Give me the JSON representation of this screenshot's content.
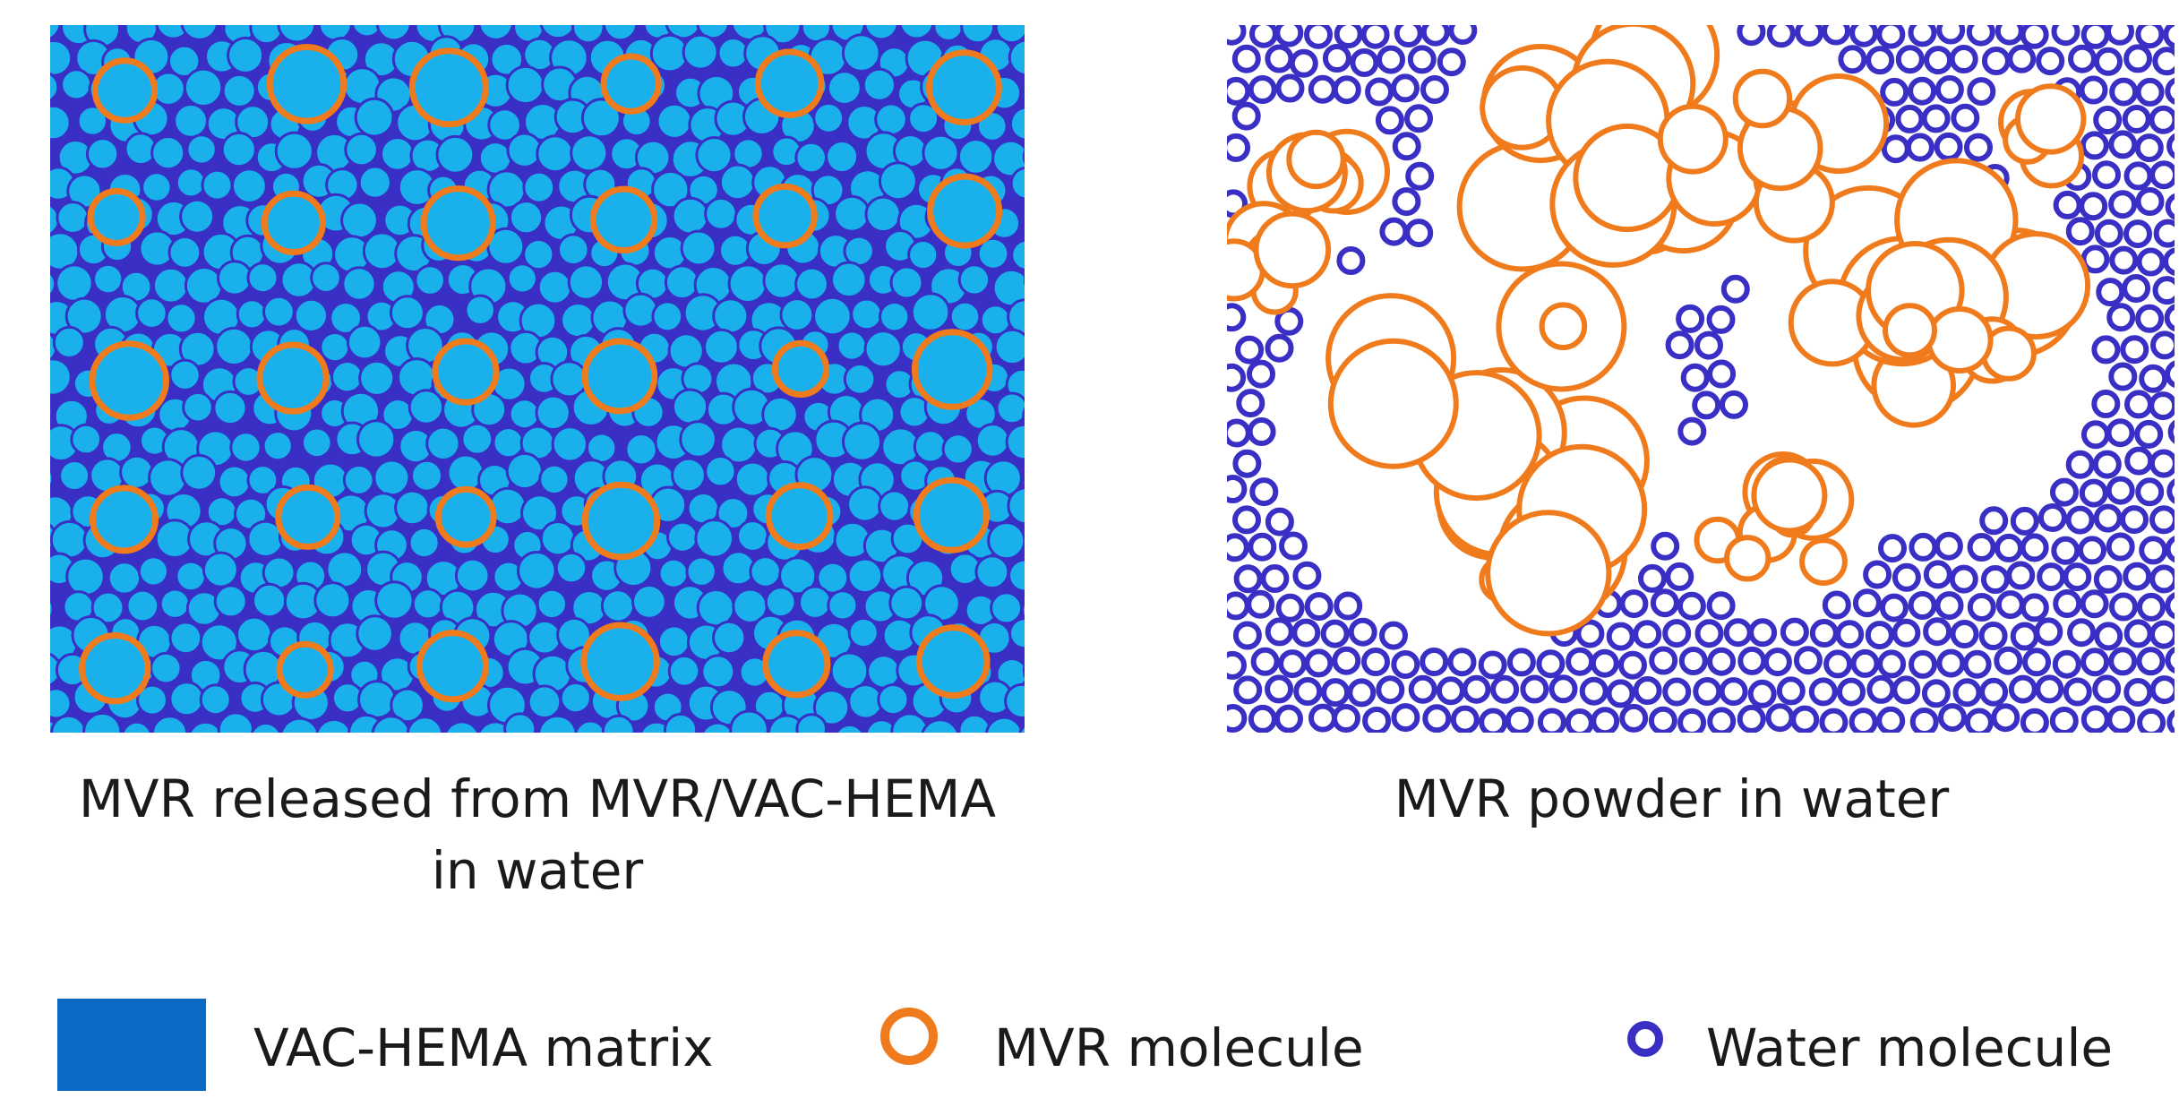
{
  "panels": {
    "left": {
      "caption_line1": "MVR released from MVR/VAC-HEMA",
      "caption_line2": "in water"
    },
    "right": {
      "caption": "MVR powder in water"
    }
  },
  "legend": {
    "matrix_label": "VAC-HEMA matrix",
    "mvr_label": "MVR molecule",
    "water_label": "Water molecule"
  },
  "colors": {
    "matrix": "#0a6ac4",
    "matrix_fill": "#1ab0ec",
    "mvr_outline": "#f07b1c",
    "water_outline": "#3a2fc4",
    "background": "#ffffff"
  }
}
